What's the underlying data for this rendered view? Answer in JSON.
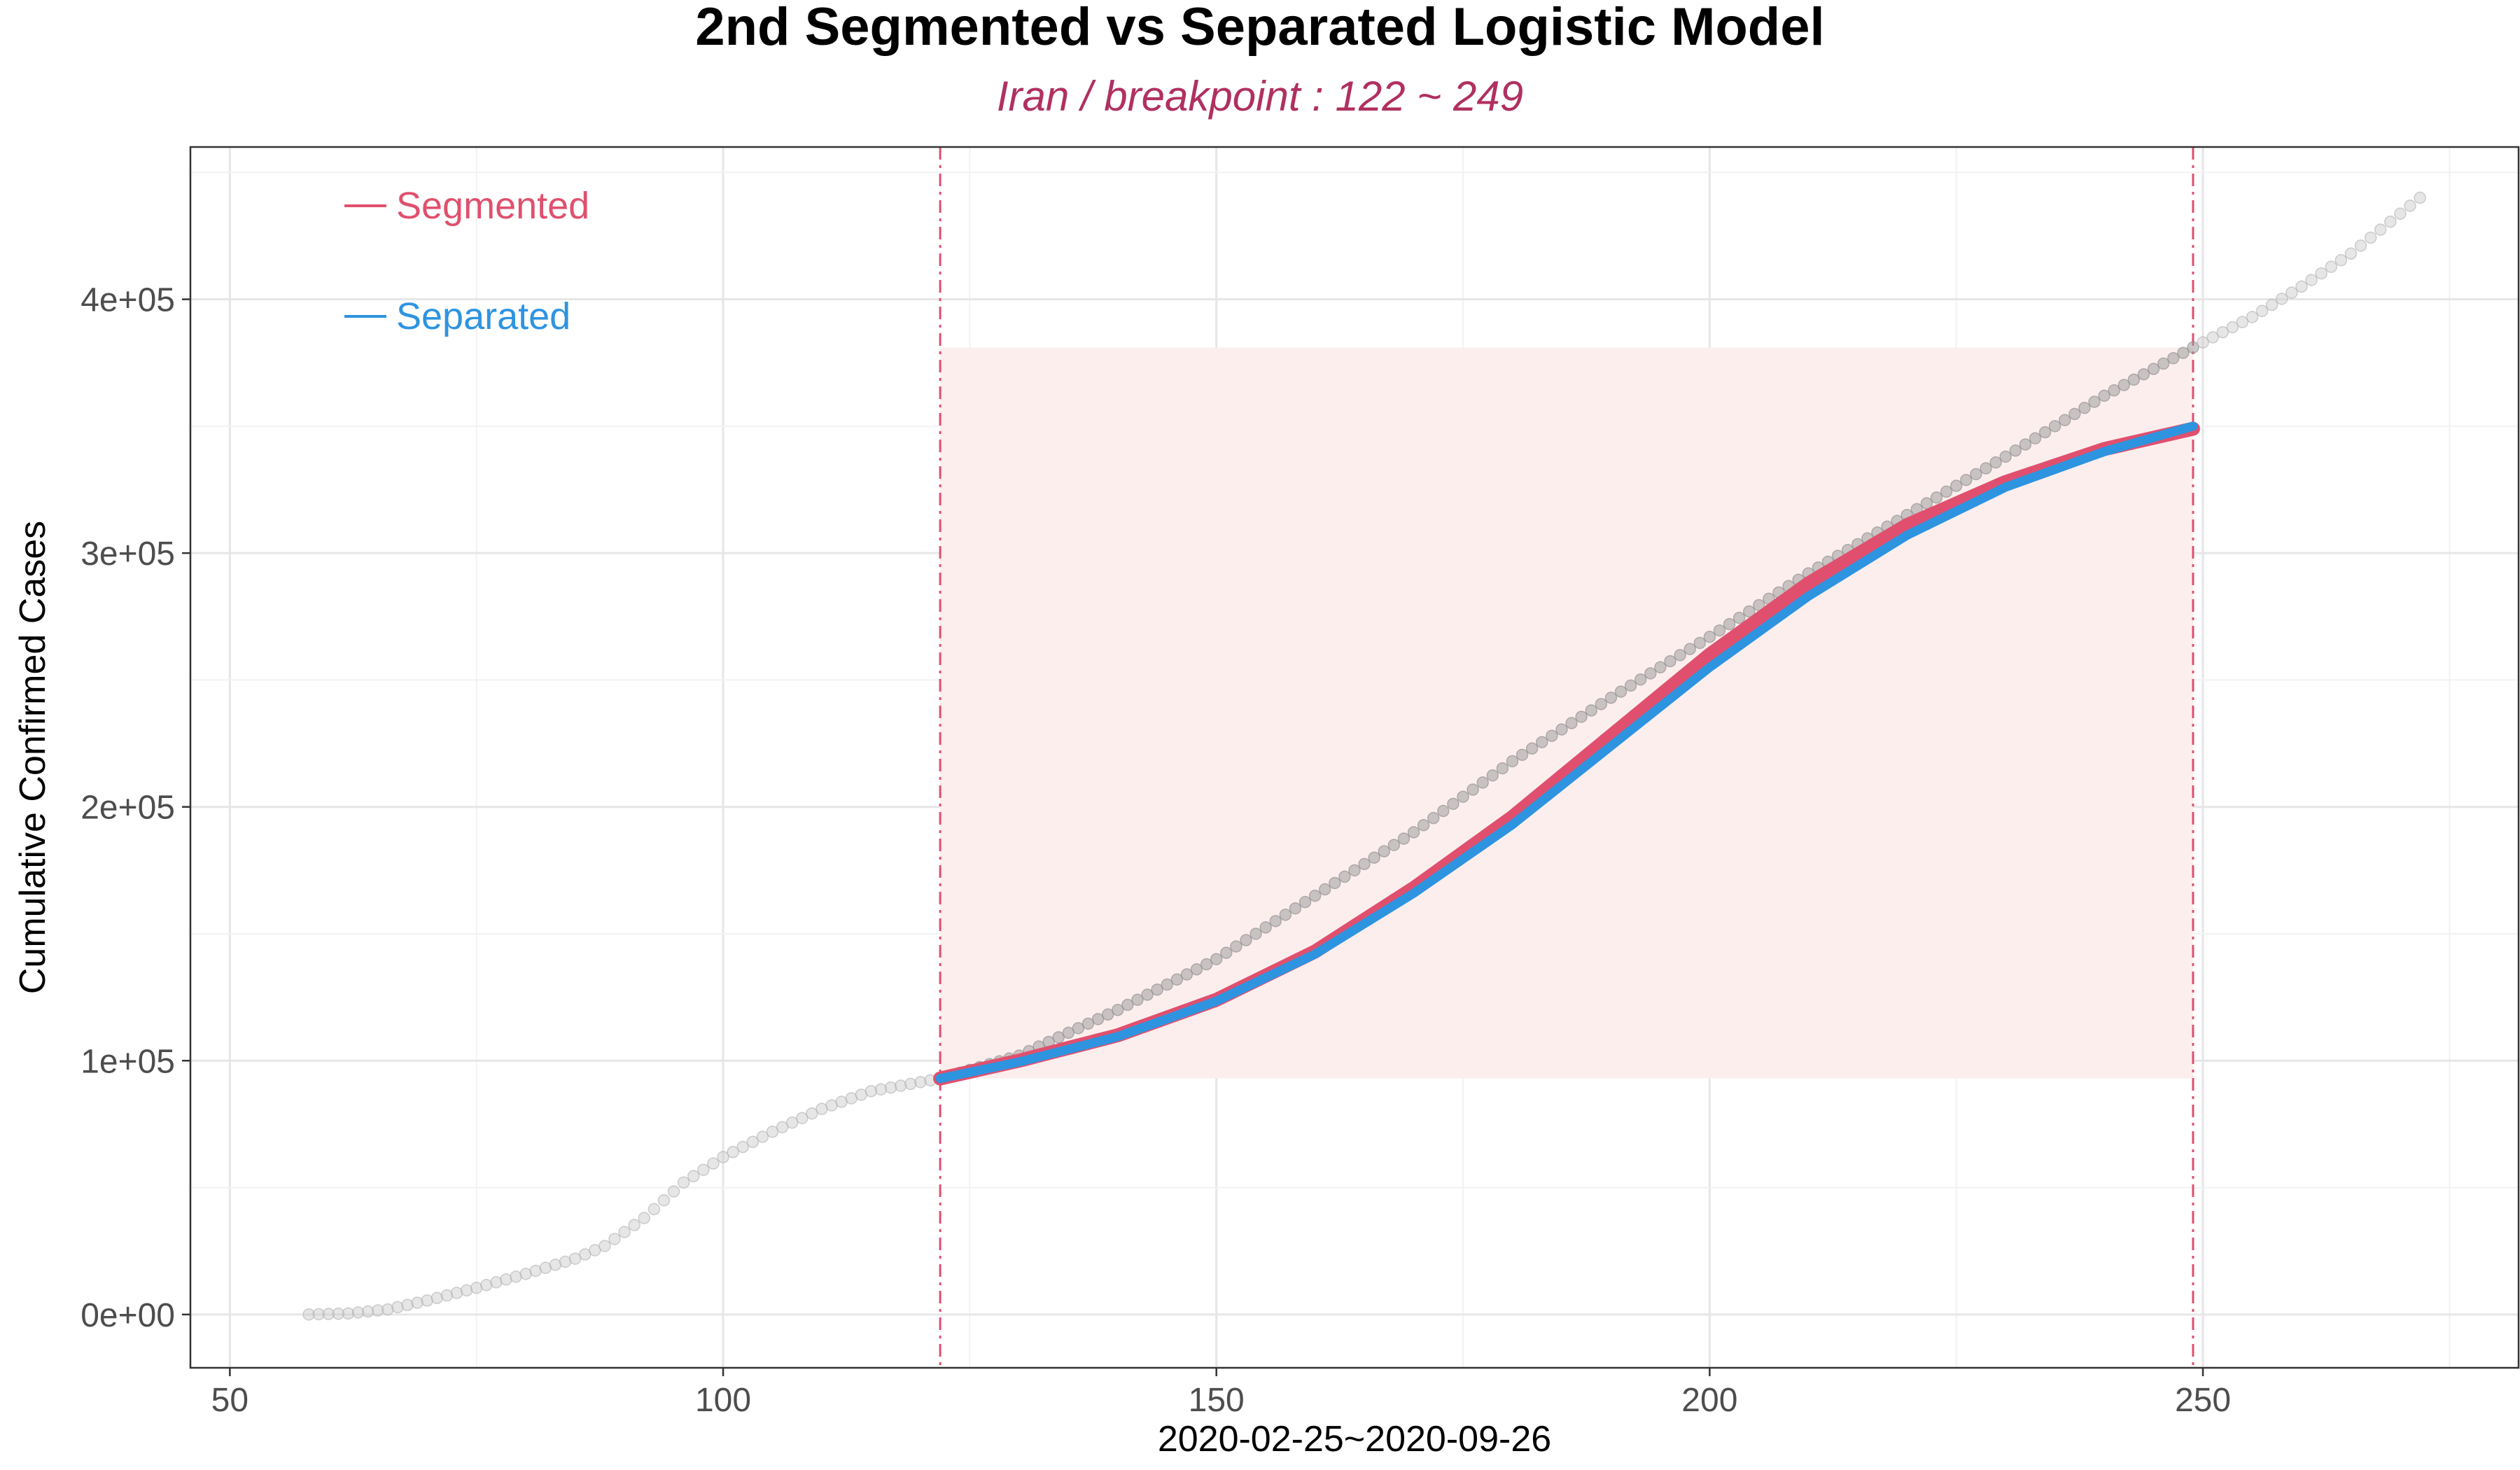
{
  "chart_data": {
    "type": "line",
    "title": "2nd Segmented vs Separated Logistic Model",
    "subtitle": "Iran  / breakpoint : 122 ~ 249",
    "xlabel": "2020-02-25~2020-09-26",
    "ylabel": "Cumulative Confirmed Cases",
    "xlim": [
      46,
      282
    ],
    "ylim": [
      -21000,
      460000
    ],
    "x_ticks": [
      50,
      100,
      150,
      200,
      250
    ],
    "y_ticks": [
      0,
      100000,
      200000,
      300000,
      400000
    ],
    "y_tick_labels": [
      "0e+00",
      "1e+05",
      "2e+05",
      "3e+05",
      "4e+05"
    ],
    "grid": true,
    "breakpoints": [
      122,
      249
    ],
    "shaded_region": {
      "x": [
        122,
        249
      ],
      "y": [
        93000,
        381000
      ],
      "color": "#fdeeee"
    },
    "observed": {
      "color": "#bdbdbd",
      "anchors": [
        [
          58,
          0
        ],
        [
          62,
          400
        ],
        [
          66,
          2000
        ],
        [
          70,
          5500
        ],
        [
          75,
          10500
        ],
        [
          80,
          16000
        ],
        [
          85,
          22000
        ],
        [
          88,
          27000
        ],
        [
          92,
          38000
        ],
        [
          96,
          52000
        ],
        [
          100,
          62000
        ],
        [
          105,
          72000
        ],
        [
          110,
          81000
        ],
        [
          115,
          88000
        ],
        [
          122,
          93000
        ],
        [
          130,
          102000
        ],
        [
          140,
          120000
        ],
        [
          150,
          140000
        ],
        [
          160,
          165000
        ],
        [
          170,
          190000
        ],
        [
          180,
          218000
        ],
        [
          190,
          243000
        ],
        [
          200,
          267000
        ],
        [
          210,
          292000
        ],
        [
          220,
          315000
        ],
        [
          230,
          338000
        ],
        [
          240,
          362000
        ],
        [
          249,
          381000
        ],
        [
          255,
          393000
        ],
        [
          260,
          405000
        ],
        [
          265,
          418000
        ],
        [
          272,
          440000
        ]
      ]
    },
    "series": [
      {
        "name": "Segmented",
        "color": "#e0506e",
        "points": [
          [
            122,
            93000
          ],
          [
            130,
            100000
          ],
          [
            140,
            110000
          ],
          [
            150,
            124000
          ],
          [
            160,
            143000
          ],
          [
            170,
            168000
          ],
          [
            180,
            196000
          ],
          [
            190,
            228000
          ],
          [
            200,
            260000
          ],
          [
            210,
            288000
          ],
          [
            220,
            311000
          ],
          [
            230,
            328000
          ],
          [
            240,
            341000
          ],
          [
            249,
            349000
          ]
        ]
      },
      {
        "name": "Separated",
        "color": "#2e94e0",
        "points": [
          [
            122,
            93000
          ],
          [
            130,
            99500
          ],
          [
            140,
            109500
          ],
          [
            150,
            123500
          ],
          [
            160,
            142000
          ],
          [
            170,
            166000
          ],
          [
            180,
            193000
          ],
          [
            190,
            224000
          ],
          [
            200,
            255000
          ],
          [
            210,
            283000
          ],
          [
            220,
            307000
          ],
          [
            230,
            326000
          ],
          [
            240,
            340000
          ],
          [
            249,
            350000
          ]
        ]
      }
    ],
    "legend": {
      "position": "top-left"
    }
  }
}
